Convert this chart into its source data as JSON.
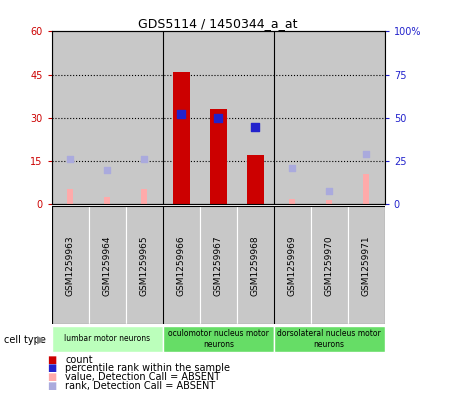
{
  "title": "GDS5114 / 1450344_a_at",
  "samples": [
    "GSM1259963",
    "GSM1259964",
    "GSM1259965",
    "GSM1259966",
    "GSM1259967",
    "GSM1259968",
    "GSM1259969",
    "GSM1259970",
    "GSM1259971"
  ],
  "count_values": [
    null,
    null,
    null,
    46,
    33,
    17,
    null,
    null,
    null
  ],
  "count_absent_values": [
    5.5,
    2.5,
    5.5,
    null,
    null,
    null,
    2.0,
    1.5,
    10.5
  ],
  "percentile_rank": [
    null,
    null,
    null,
    52,
    50,
    45,
    null,
    null,
    null
  ],
  "rank_absent_values": [
    26,
    20,
    26,
    null,
    null,
    null,
    21,
    8,
    29
  ],
  "cell_groups": [
    {
      "label": "lumbar motor neurons",
      "start": 0,
      "end": 3
    },
    {
      "label": "oculomotor nucleus motor\nneurons",
      "start": 3,
      "end": 6
    },
    {
      "label": "dorsolateral nucleus motor\nneurons",
      "start": 6,
      "end": 9
    }
  ],
  "ylim_left": [
    0,
    60
  ],
  "ylim_right": [
    0,
    100
  ],
  "yticks_left": [
    0,
    15,
    30,
    45,
    60
  ],
  "ytick_labels_left": [
    "0",
    "15",
    "30",
    "45",
    "60"
  ],
  "yticks_right": [
    0,
    25,
    50,
    75,
    100
  ],
  "ytick_labels_right": [
    "0",
    "25",
    "50",
    "75",
    "100%"
  ],
  "count_color": "#cc0000",
  "count_absent_color": "#ffaaaa",
  "percentile_color": "#2222cc",
  "rank_absent_color": "#aaaadd",
  "bg_gray": "#c8c8c8",
  "bg_green_light": "#bbffbb",
  "bg_green": "#66dd66",
  "legend_items": [
    "count",
    "percentile rank within the sample",
    "value, Detection Call = ABSENT",
    "rank, Detection Call = ABSENT"
  ]
}
